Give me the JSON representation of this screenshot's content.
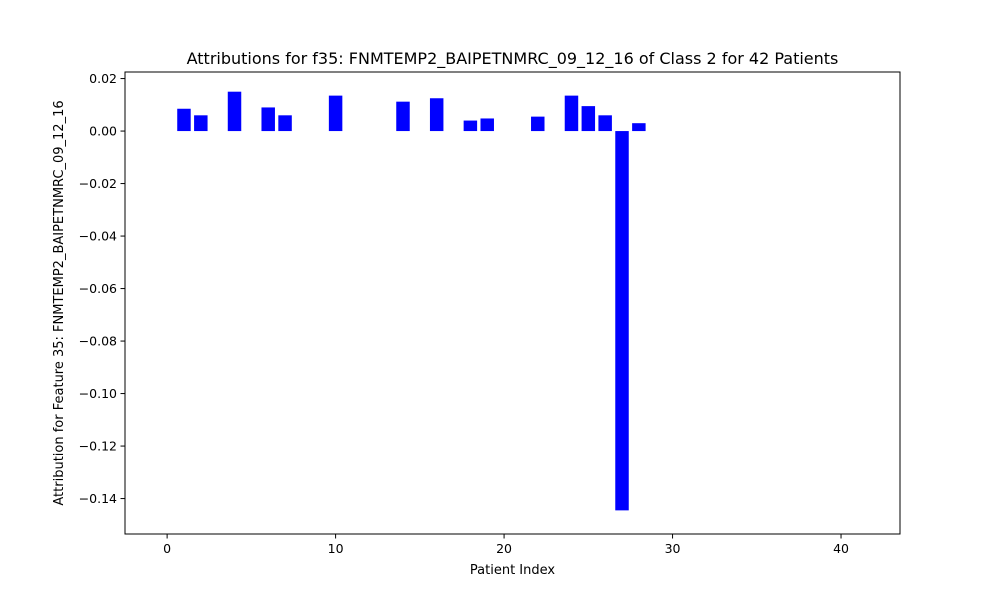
{
  "chart_data": {
    "type": "bar",
    "title": "Attributions for f35: FNMTEMP2_BAIPETNMRC_09_12_16 of Class 2 for 42 Patients",
    "xlabel": "Patient Index",
    "ylabel": "Attribution for Feature 35: FNMTEMP2_BAIPETNMRC_09_12_16",
    "xlim": [
      -2.5,
      43.5
    ],
    "ylim": [
      -0.1535,
      0.0225
    ],
    "x_ticks": [
      0,
      10,
      20,
      30,
      40
    ],
    "x_tick_labels": [
      "0",
      "10",
      "20",
      "30",
      "40"
    ],
    "y_ticks": [
      0.02,
      0.0,
      -0.02,
      -0.04,
      -0.06,
      -0.08,
      -0.1,
      -0.12,
      -0.14
    ],
    "y_tick_labels": [
      "0.02",
      "0.00",
      "−0.02",
      "−0.04",
      "−0.06",
      "−0.08",
      "−0.10",
      "−0.12",
      "−0.14"
    ],
    "bar_color": "#0000ff",
    "grid": false,
    "x": [
      1,
      2,
      4,
      6,
      7,
      10,
      14,
      16,
      18,
      19,
      22,
      24,
      25,
      26,
      27,
      28
    ],
    "values": [
      0.0085,
      0.006,
      0.015,
      0.009,
      0.006,
      0.0135,
      0.0112,
      0.0125,
      0.004,
      0.0048,
      0.0055,
      0.0135,
      0.0095,
      0.006,
      -0.1445,
      0.003
    ]
  }
}
